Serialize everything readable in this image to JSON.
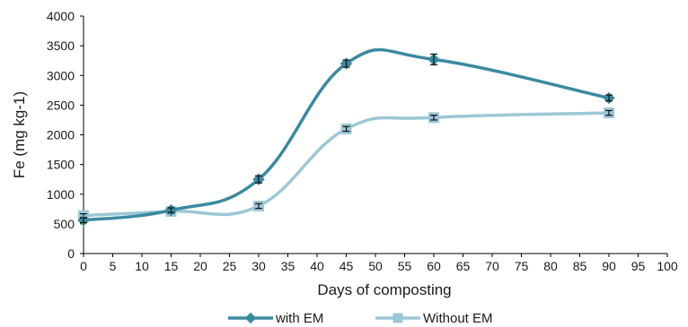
{
  "chart_data": {
    "type": "line",
    "xlabel": "Days of composting",
    "ylabel": "Fe (mg kg-1)",
    "xlim": [
      0,
      100
    ],
    "ylim": [
      0,
      4000
    ],
    "x_ticks": [
      "0",
      "5",
      "10",
      "15",
      "20",
      "25",
      "30",
      "35",
      "40",
      "45",
      "50",
      "55",
      "60",
      "65",
      "70",
      "75",
      "80",
      "85",
      "90",
      "95",
      "100"
    ],
    "y_ticks": [
      "0",
      "500",
      "1000",
      "1500",
      "2000",
      "2500",
      "3000",
      "3500",
      "4000"
    ],
    "x": [
      0,
      15,
      30,
      45,
      60,
      90
    ],
    "grid": false,
    "legend_position": "bottom",
    "series": [
      {
        "name": "with EM",
        "color": "#3a8aa0",
        "marker": "diamond",
        "values": [
          560,
          730,
          1250,
          3200,
          3270,
          2620
        ],
        "errors": [
          40,
          40,
          60,
          60,
          90,
          50
        ]
      },
      {
        "name": "Without EM",
        "color": "#9cc7d6",
        "marker": "square",
        "values": [
          640,
          710,
          800,
          2100,
          2290,
          2370
        ],
        "errors": [
          30,
          30,
          40,
          40,
          40,
          40
        ]
      }
    ]
  }
}
